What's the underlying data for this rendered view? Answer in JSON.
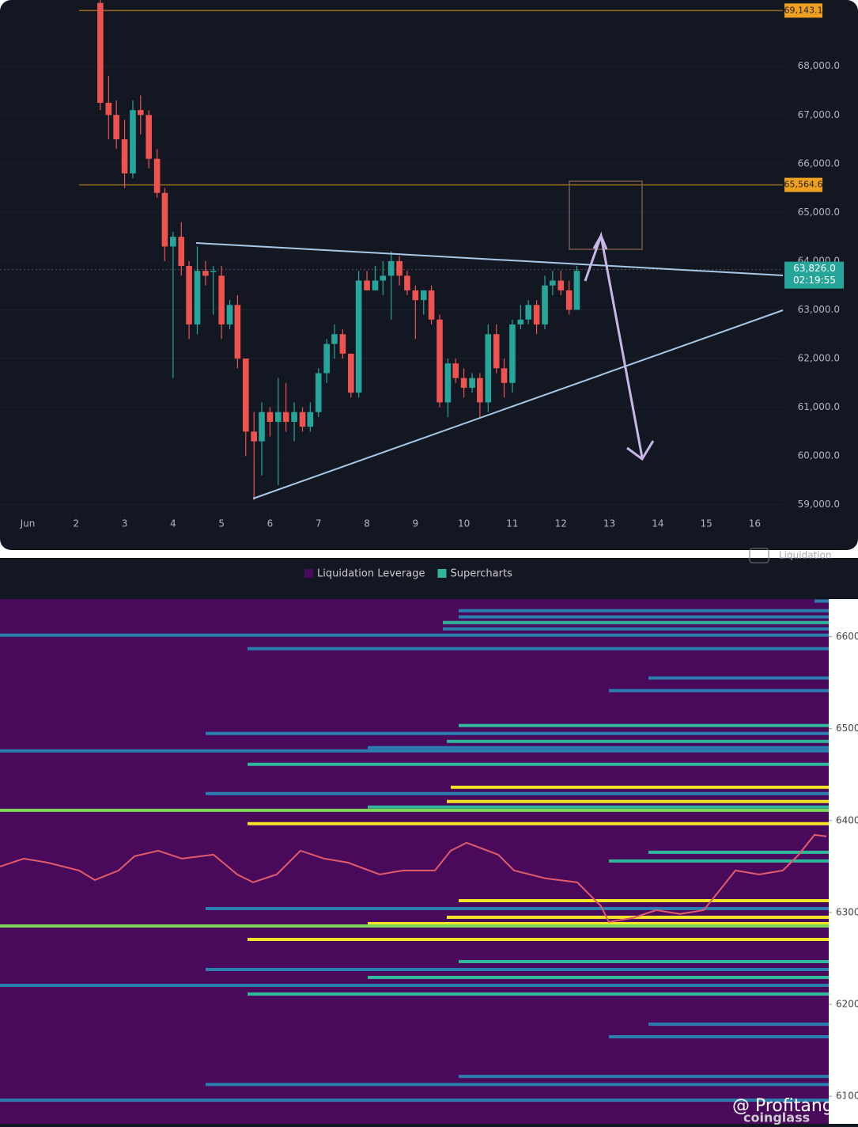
{
  "chart_data": [
    {
      "type": "candlestick",
      "xticks": [
        {
          "value": 1,
          "label": "Jun"
        },
        2,
        3,
        4,
        5,
        6,
        7,
        8,
        9,
        10,
        11,
        12,
        13,
        14,
        15,
        16
      ],
      "xlim": [
        0.43,
        16.58
      ],
      "ylim": [
        58800,
        69360
      ],
      "yticks": [
        {
          "value": 59000,
          "label": "59,000.0"
        },
        {
          "value": 60000,
          "label": "60,000.0"
        },
        {
          "value": 61000,
          "label": "61,000.0"
        },
        {
          "value": 62000,
          "label": "62,000.0"
        },
        {
          "value": 63000,
          "label": "63,000.0"
        },
        {
          "value": 64000,
          "label": "64,000.0"
        },
        {
          "value": 65000,
          "label": "65,000.0"
        },
        {
          "value": 66000,
          "label": "66,000.0"
        },
        {
          "value": 67000,
          "label": "67,000.0"
        },
        {
          "value": 68000,
          "label": "68,000.0"
        }
      ],
      "up_color": "#26a69a",
      "down_color": "#ef5350",
      "x": [
        2.5,
        2.67,
        2.83,
        3,
        3.17,
        3.33,
        3.5,
        3.67,
        3.83,
        4,
        4.17,
        4.33,
        4.5,
        4.67,
        4.83,
        5,
        5.17,
        5.33,
        5.5,
        5.67,
        5.83,
        6,
        6.17,
        6.33,
        6.5,
        6.67,
        6.83,
        7,
        7.17,
        7.33,
        7.5,
        7.67,
        7.83,
        8,
        8.17,
        8.33,
        8.5,
        8.67,
        8.83,
        9,
        9.17,
        9.33,
        9.5,
        9.67,
        9.83,
        10,
        10.17,
        10.33,
        10.5,
        10.67,
        10.83,
        11,
        11.17,
        11.33,
        11.5,
        11.67,
        11.83,
        12,
        12.17,
        12.33
      ],
      "open": [
        69300,
        67250,
        67000,
        66500,
        65800,
        67100,
        67000,
        66100,
        65400,
        64300,
        64500,
        63900,
        62700,
        63800,
        63800,
        63700,
        62700,
        63100,
        62000,
        60500,
        60300,
        60900,
        60700,
        60900,
        60700,
        60900,
        60600,
        60900,
        61700,
        62300,
        62500,
        62100,
        61300,
        63600,
        63400,
        63600,
        63700,
        64000,
        63700,
        63400,
        63200,
        63400,
        62800,
        61100,
        61900,
        61600,
        61400,
        61600,
        61100,
        62500,
        61800,
        61500,
        62700,
        62800,
        63100,
        62700,
        63500,
        63600,
        63400,
        63000
      ],
      "high": [
        69400,
        67800,
        67300,
        66900,
        67300,
        67400,
        67100,
        66300,
        65500,
        64600,
        64800,
        64000,
        64300,
        64000,
        63900,
        63900,
        63200,
        63300,
        62000,
        60900,
        61100,
        61000,
        61600,
        61500,
        61100,
        61000,
        61100,
        61800,
        62400,
        62700,
        62600,
        62100,
        63800,
        63800,
        63900,
        64000,
        64200,
        64100,
        63800,
        63500,
        63400,
        63500,
        62900,
        62000,
        62000,
        61800,
        61700,
        61700,
        62700,
        62700,
        62000,
        62800,
        63100,
        63200,
        63200,
        63700,
        63800,
        63800,
        63600,
        63900
      ],
      "low": [
        67100,
        66500,
        66300,
        65500,
        65700,
        66600,
        65900,
        65300,
        64000,
        61600,
        63700,
        62400,
        62500,
        63500,
        62900,
        62400,
        62600,
        61800,
        60000,
        59100,
        59600,
        60400,
        59400,
        60500,
        60300,
        60500,
        60500,
        60800,
        61500,
        62000,
        62000,
        61200,
        61200,
        63400,
        63400,
        63300,
        62800,
        63500,
        63300,
        62400,
        62900,
        62700,
        61000,
        60800,
        61500,
        61200,
        61300,
        60800,
        60900,
        61700,
        61200,
        61300,
        62600,
        62700,
        62500,
        62600,
        63300,
        63300,
        62900,
        63000
      ],
      "close": [
        67250,
        67000,
        66500,
        65800,
        67100,
        67000,
        66100,
        65400,
        64300,
        64500,
        63900,
        62700,
        63800,
        63700,
        63800,
        62700,
        63100,
        62000,
        60500,
        60300,
        60900,
        60700,
        60900,
        60700,
        60900,
        60600,
        60900,
        61700,
        62300,
        62500,
        62100,
        61300,
        63600,
        63400,
        63600,
        63700,
        64000,
        63700,
        63400,
        63200,
        63400,
        62800,
        61100,
        61900,
        61600,
        61400,
        61600,
        61100,
        62500,
        61800,
        61500,
        62700,
        62800,
        63100,
        62700,
        63500,
        63600,
        63400,
        63000,
        63800
      ],
      "price_lines": [
        {
          "value": 69143.1,
          "label": "69,143.1",
          "color": "#f0a020"
        },
        {
          "value": 65564.6,
          "label": "65,564.6",
          "color": "#f0a020"
        }
      ],
      "last_price": {
        "value": 63826.0,
        "label": "63,826.0",
        "countdown": "02:19:55",
        "color": "#26a69a"
      }
    },
    {
      "type": "heatmap",
      "header_label": "Liquidation",
      "legend": [
        {
          "name": "Liquidation Leverage",
          "color": "#4a0a5c"
        },
        {
          "name": "Supercharts",
          "color": "#2fb89a"
        }
      ],
      "background": "#4a0a5c",
      "xlim": [
        0,
        1048
      ],
      "ylim": [
        60700,
        66410
      ],
      "yticks": [
        61000,
        62000,
        63000,
        64000,
        65000,
        66000
      ],
      "levels": [
        {
          "price": 66388,
          "x0": 1030,
          "color": "#2a7fb0"
        },
        {
          "price": 66284,
          "x0": 580,
          "color": "#2a7fb0"
        },
        {
          "price": 66216,
          "x0": 580,
          "color": "#2a7fb0"
        },
        {
          "price": 66155,
          "x0": 560,
          "color": "#2fb89a"
        },
        {
          "price": 66086,
          "x0": 560,
          "color": "#2a7fb0"
        },
        {
          "price": 66017,
          "x0": 0,
          "color": "#2a7fb0"
        },
        {
          "price": 65871,
          "x0": 313,
          "color": "#2a7fb0"
        },
        {
          "price": 65552,
          "x0": 820,
          "color": "#2a7fb0"
        },
        {
          "price": 65414,
          "x0": 770,
          "color": "#2a7fb0"
        },
        {
          "price": 65034,
          "x0": 580,
          "color": "#2fb89a"
        },
        {
          "price": 64948,
          "x0": 260,
          "color": "#2a7fb0"
        },
        {
          "price": 64862,
          "x0": 565,
          "color": "#2fb89a"
        },
        {
          "price": 64793,
          "x0": 465,
          "color": "#2a7fb0"
        },
        {
          "price": 64759,
          "x0": 0,
          "color": "#2a7fb0"
        },
        {
          "price": 64612,
          "x0": 313,
          "color": "#2fb89a"
        },
        {
          "price": 64362,
          "x0": 570,
          "color": "#f2e526"
        },
        {
          "price": 64293,
          "x0": 260,
          "color": "#2a7fb0"
        },
        {
          "price": 64207,
          "x0": 565,
          "color": "#f2e526"
        },
        {
          "price": 64147,
          "x0": 465,
          "color": "#2fb89a"
        },
        {
          "price": 64112,
          "x0": 0,
          "color": "#7ed957"
        },
        {
          "price": 63966,
          "x0": 313,
          "color": "#f2e526"
        },
        {
          "price": 63655,
          "x0": 820,
          "color": "#2fb89a"
        },
        {
          "price": 63560,
          "x0": 770,
          "color": "#2fb89a"
        },
        {
          "price": 63129,
          "x0": 580,
          "color": "#f2e526"
        },
        {
          "price": 63043,
          "x0": 260,
          "color": "#2a7fb0"
        },
        {
          "price": 62948,
          "x0": 565,
          "color": "#f2e526"
        },
        {
          "price": 62879,
          "x0": 465,
          "color": "#f2e526"
        },
        {
          "price": 62853,
          "x0": 0,
          "color": "#7ed957"
        },
        {
          "price": 62707,
          "x0": 313,
          "color": "#f2e526"
        },
        {
          "price": 62466,
          "x0": 580,
          "color": "#2fb89a"
        },
        {
          "price": 62379,
          "x0": 260,
          "color": "#2a7fb0"
        },
        {
          "price": 62293,
          "x0": 465,
          "color": "#2fb89a"
        },
        {
          "price": 62207,
          "x0": 0,
          "color": "#2a7fb0"
        },
        {
          "price": 62112,
          "x0": 313,
          "color": "#2fb89a"
        },
        {
          "price": 61784,
          "x0": 820,
          "color": "#2a7fb0"
        },
        {
          "price": 61647,
          "x0": 770,
          "color": "#2a7fb0"
        },
        {
          "price": 61216,
          "x0": 580,
          "color": "#2a7fb0"
        },
        {
          "price": 61129,
          "x0": 260,
          "color": "#2a7fb0"
        },
        {
          "price": 60957,
          "x0": 0,
          "color": "#2a7fb0"
        }
      ],
      "line": {
        "color": "#e25b6a",
        "x": [
          0,
          30,
          60,
          100,
          120,
          150,
          170,
          200,
          230,
          270,
          300,
          320,
          350,
          380,
          410,
          440,
          480,
          510,
          550,
          570,
          590,
          630,
          650,
          690,
          730,
          760,
          770,
          800,
          830,
          860,
          890,
          910,
          930,
          960,
          990,
          1010,
          1030,
          1045
        ],
        "values": [
          63500,
          63586,
          63543,
          63457,
          63353,
          63457,
          63612,
          63672,
          63586,
          63629,
          63414,
          63328,
          63414,
          63672,
          63586,
          63543,
          63414,
          63457,
          63457,
          63672,
          63759,
          63629,
          63457,
          63371,
          63328,
          63069,
          62897,
          62940,
          63026,
          62983,
          63026,
          63241,
          63457,
          63414,
          63457,
          63629,
          63845,
          63828
        ]
      }
    }
  ],
  "watermark": {
    "handle": "@ Profitangel",
    "brand": "coinglass"
  }
}
